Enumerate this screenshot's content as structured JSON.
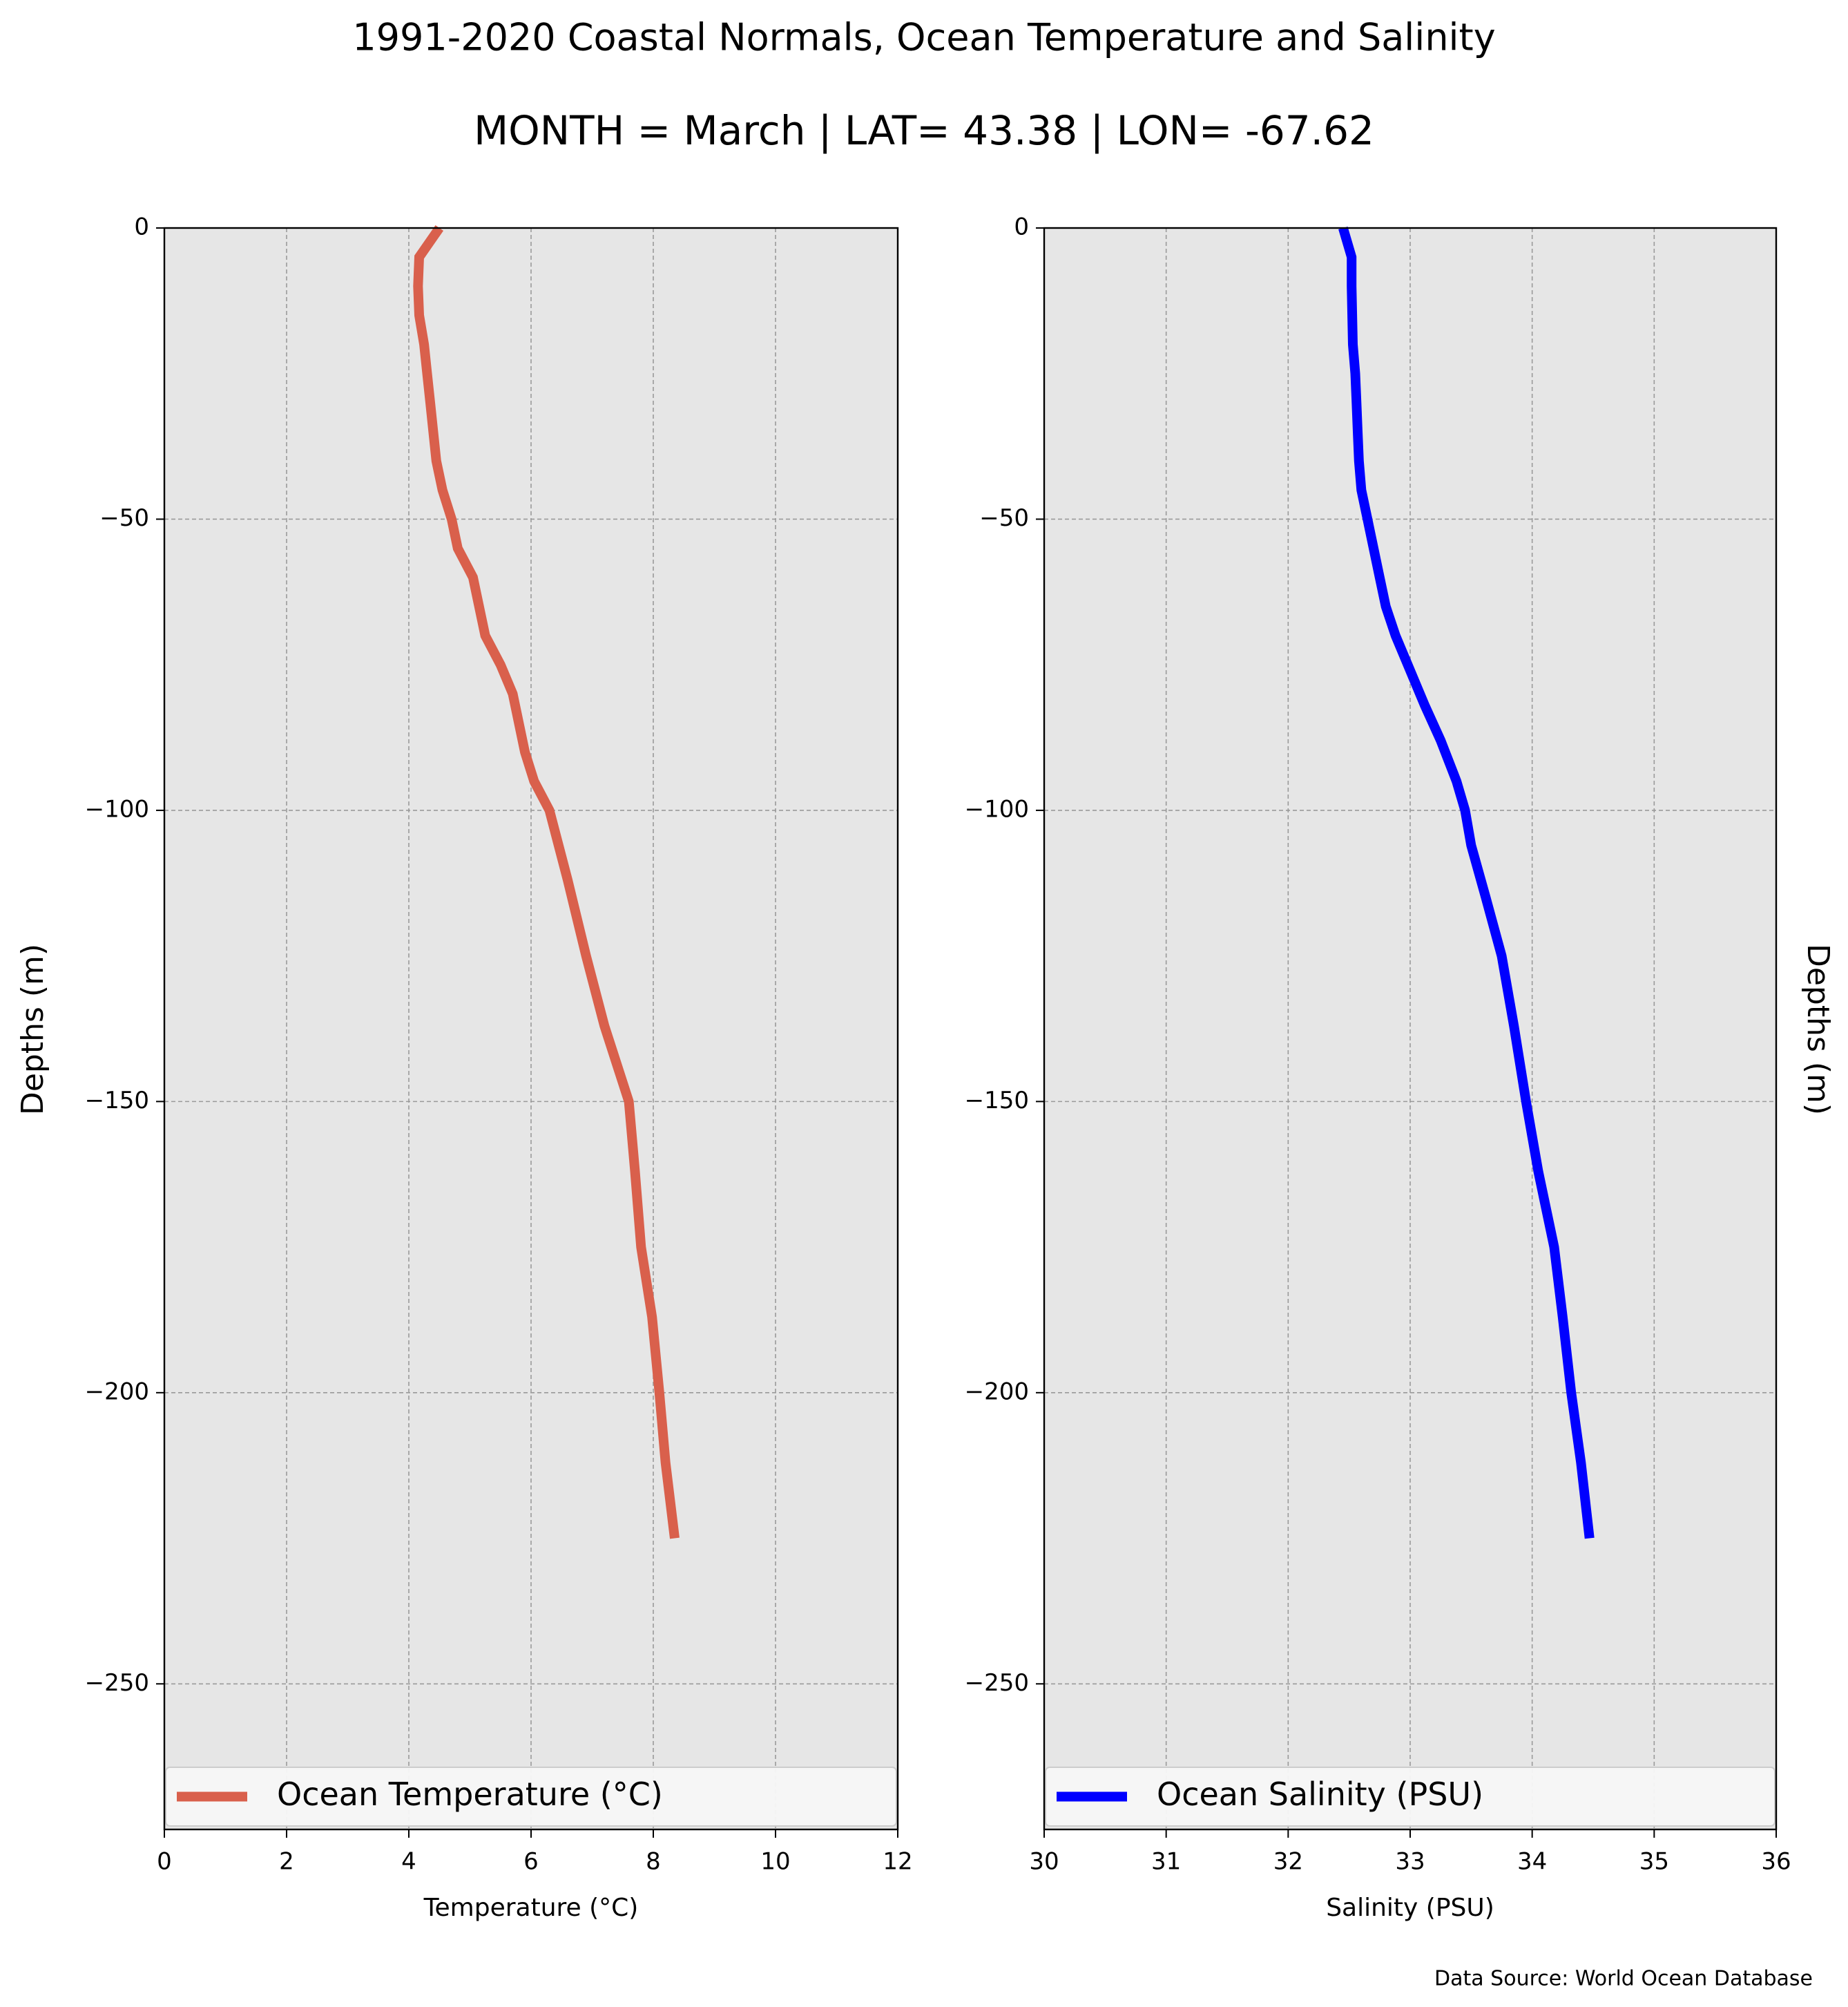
{
  "chart_data": {
    "title": "1991-2020 Coastal Normals, Ocean Temperature and Salinity",
    "subtitle": "MONTH = March | LAT= 43.38 | LON= -67.62",
    "source": "Data Source: World Ocean Database",
    "panels": [
      {
        "type": "line",
        "xlabel": "Temperature ($^\\circ$C)",
        "xlabel_text": "Temperature (°C)",
        "ylabel": "Depths (m)",
        "xlim": [
          0,
          12
        ],
        "ylim": [
          -275,
          0
        ],
        "xticks": [
          0,
          2,
          4,
          6,
          8,
          10,
          12
        ],
        "yticks": [
          0,
          -50,
          -100,
          -150,
          -200,
          -250
        ],
        "ytick_labels": [
          "0",
          "−50",
          "−100",
          "−150",
          "−200",
          "−250"
        ],
        "grid": true,
        "legend_position": "lower",
        "series": [
          {
            "name": "Ocean Temperature (°C)",
            "color": "#d9604c",
            "x": [
              4.5,
              4.17,
              4.15,
              4.17,
              4.25,
              4.3,
              4.35,
              4.45,
              4.55,
              4.7,
              4.8,
              5.05,
              5.25,
              5.5,
              5.7,
              5.9,
              6.05,
              6.3,
              6.6,
              6.9,
              7.2,
              7.6,
              7.7,
              7.8,
              7.98,
              8.1,
              8.2,
              8.35
            ],
            "y": [
              0,
              -5,
              -10,
              -15,
              -20,
              -25,
              -30,
              -40,
              -45,
              -50,
              -55,
              -60,
              -70,
              -75,
              -80,
              -90,
              -95,
              -100,
              -112,
              -125,
              -137,
              -150,
              -162,
              -175,
              -187,
              -200,
              -212,
              -225
            ]
          }
        ]
      },
      {
        "type": "line",
        "xlabel": "Salinity (PSU)",
        "xlabel_text": "Salinity (PSU)",
        "ylabel": "Depths (m)",
        "xlim": [
          30,
          36
        ],
        "ylim": [
          -275,
          0
        ],
        "xticks": [
          30,
          31,
          32,
          33,
          34,
          35,
          36
        ],
        "yticks": [
          0,
          -50,
          -100,
          -150,
          -200,
          -250
        ],
        "ytick_labels": [
          "0",
          "−50",
          "−100",
          "−150",
          "−200",
          "−250"
        ],
        "grid": true,
        "legend_position": "lower",
        "series": [
          {
            "name": "Ocean Salinity (PSU)",
            "color": "#0000ff",
            "x": [
              32.45,
              32.52,
              32.52,
              32.53,
              32.55,
              32.56,
              32.57,
              32.58,
              32.6,
              32.65,
              32.7,
              32.75,
              32.8,
              32.88,
              32.98,
              33.12,
              33.25,
              33.38,
              33.45,
              33.5,
              33.62,
              33.75,
              33.85,
              33.95,
              34.05,
              34.18,
              34.25,
              34.32,
              34.4,
              34.47
            ],
            "y": [
              0,
              -5,
              -10,
              -20,
              -25,
              -30,
              -35,
              -40,
              -45,
              -50,
              -55,
              -60,
              -65,
              -70,
              -75,
              -82,
              -88,
              -95,
              -100,
              -106,
              -115,
              -125,
              -137,
              -150,
              -162,
              -175,
              -187,
              -200,
              -212,
              -225
            ]
          }
        ]
      }
    ]
  }
}
